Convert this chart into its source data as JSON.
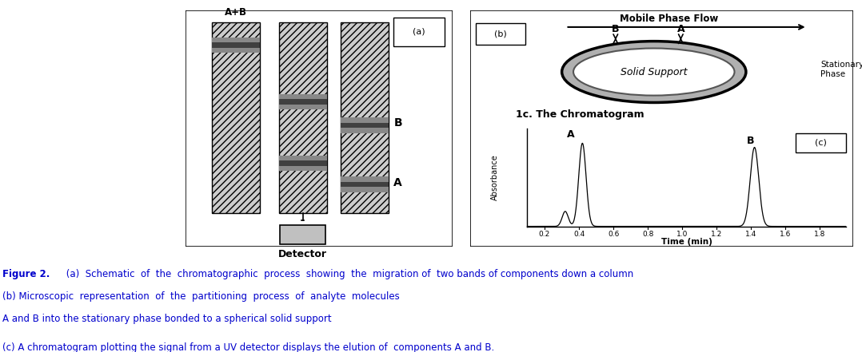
{
  "fig_width": 10.78,
  "fig_height": 4.41,
  "bg_color": "#ffffff",
  "caption_line1_bold": "Figure 2.",
  "caption_line1_rest": " (a)  Schematic  of  the  chromatographic  process  showing  the  migration of  two bands of components down a column",
  "caption_line2": "(b) Microscopic  representation  of  the  partitioning  process  of  analyte  molecules",
  "caption_line3": "A and B into the stationary phase bonded to a spherical solid support",
  "caption_line4": "(c) A chromatogram plotting the signal from a UV detector displays the elution of  components A and B.",
  "caption_color_bold": "#0000cc",
  "caption_color_normal": "#000080"
}
